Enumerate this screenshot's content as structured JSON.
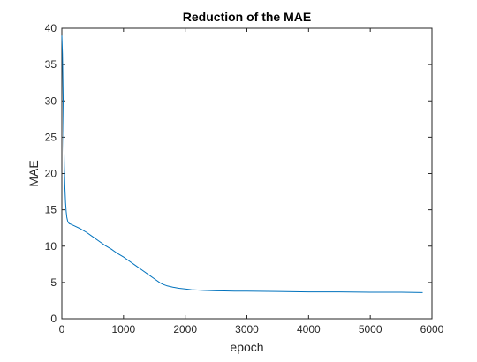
{
  "chart_data": {
    "type": "line",
    "title": "Reduction of the MAE",
    "xlabel": "epoch",
    "ylabel": "MAE",
    "xlim": [
      0,
      6000
    ],
    "ylim": [
      0,
      40
    ],
    "xticks": [
      0,
      1000,
      2000,
      3000,
      4000,
      5000,
      6000
    ],
    "yticks": [
      0,
      5,
      10,
      15,
      20,
      25,
      30,
      35,
      40
    ],
    "xtick_labels": [
      "0",
      "1000",
      "2000",
      "3000",
      "4000",
      "5000",
      "6000"
    ],
    "ytick_labels": [
      "0",
      "5",
      "10",
      "15",
      "20",
      "25",
      "30",
      "35",
      "40"
    ],
    "grid": false,
    "legend": "none",
    "series": [
      {
        "color": "#0072bd",
        "x": [
          0,
          10,
          20,
          30,
          40,
          50,
          60,
          70,
          80,
          90,
          100,
          120,
          150,
          200,
          300,
          400,
          500,
          600,
          700,
          800,
          900,
          1000,
          1100,
          1200,
          1300,
          1400,
          1500,
          1600,
          1650,
          1700,
          1800,
          1900,
          2000,
          2100,
          2200,
          2300,
          2500,
          2800,
          3000,
          3500,
          4000,
          4500,
          5000,
          5500,
          5850
        ],
        "y": [
          39,
          36.5,
          31,
          25.5,
          21,
          18,
          16,
          14.8,
          14,
          13.6,
          13.3,
          13.1,
          13.0,
          12.8,
          12.4,
          11.9,
          11.3,
          10.7,
          10.1,
          9.6,
          9.0,
          8.5,
          7.9,
          7.3,
          6.7,
          6.1,
          5.5,
          4.9,
          4.7,
          4.55,
          4.35,
          4.2,
          4.1,
          4.0,
          3.95,
          3.9,
          3.85,
          3.8,
          3.8,
          3.75,
          3.7,
          3.7,
          3.65,
          3.65,
          3.6
        ]
      }
    ]
  }
}
